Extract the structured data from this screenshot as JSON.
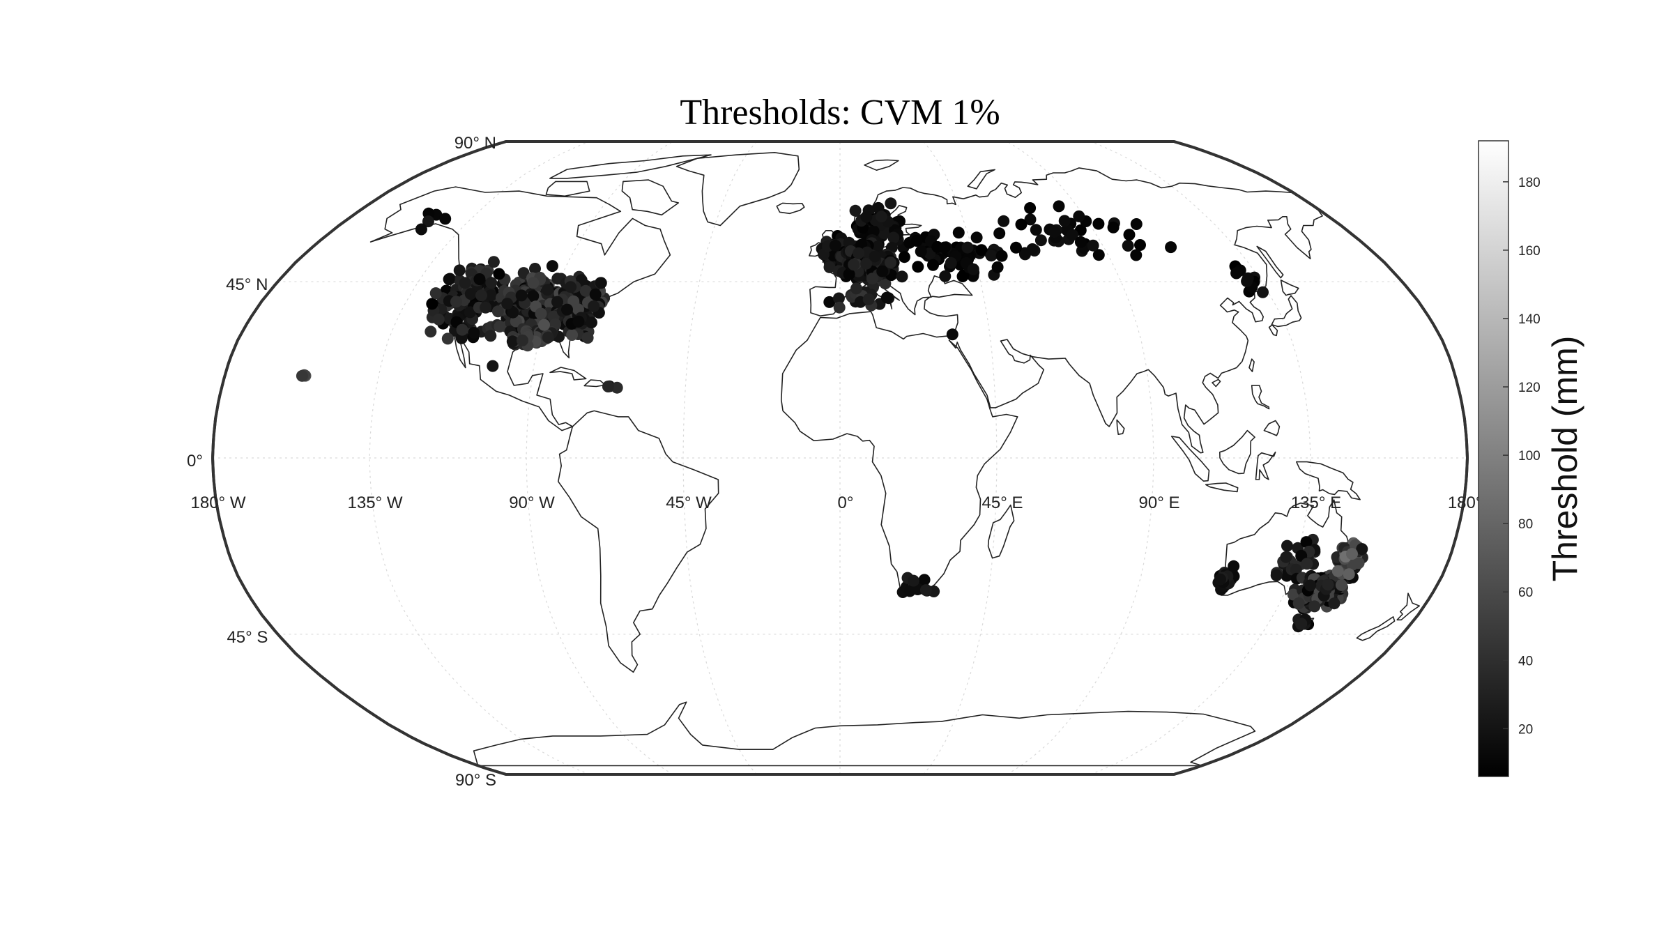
{
  "title": "Thresholds: CVM 1%",
  "lat_labels": [
    {
      "lat": 90,
      "text": "90° N"
    },
    {
      "lat": 45,
      "text": "45° N"
    },
    {
      "lat": 0,
      "text": "0°"
    },
    {
      "lat": -45,
      "text": "45° S"
    },
    {
      "lat": -90,
      "text": "90° S"
    }
  ],
  "lon_labels": [
    {
      "lon": -180,
      "text": "180° W"
    },
    {
      "lon": -135,
      "text": "135° W"
    },
    {
      "lon": -90,
      "text": "90° W"
    },
    {
      "lon": -45,
      "text": "45° W"
    },
    {
      "lon": 0,
      "text": "0°"
    },
    {
      "lon": 45,
      "text": "45° E"
    },
    {
      "lon": 90,
      "text": "90° E"
    },
    {
      "lon": 135,
      "text": "135° E"
    },
    {
      "lon": 180,
      "text": "180° E"
    }
  ],
  "colorbar": {
    "label": "Threshold (mm)",
    "range": [
      6,
      192
    ],
    "ticks": [
      20,
      40,
      60,
      80,
      100,
      120,
      140,
      160,
      180
    ],
    "colormap": [
      "#000000",
      "#ffffff"
    ]
  },
  "chart_data": {
    "type": "scatter",
    "projection": "Robinson",
    "marker_color": "#111111",
    "clusters": [
      {
        "name": "Alaska",
        "lon": -150,
        "lat": 61,
        "spread": [
          5,
          2
        ],
        "n": 5,
        "val": [
          8,
          25
        ]
      },
      {
        "name": "Hawaii",
        "lon": -157,
        "lat": 21,
        "spread": [
          1,
          0.5
        ],
        "n": 3,
        "val": [
          30,
          70
        ]
      },
      {
        "name": "West US",
        "lon": -116,
        "lat": 40,
        "spread": [
          7,
          7
        ],
        "n": 140,
        "val": [
          6,
          45
        ]
      },
      {
        "name": "Central US",
        "lon": -97,
        "lat": 40,
        "spread": [
          8,
          6
        ],
        "n": 200,
        "val": [
          10,
          60
        ]
      },
      {
        "name": "East US",
        "lon": -82,
        "lat": 38,
        "spread": [
          6,
          6
        ],
        "n": 160,
        "val": [
          10,
          55
        ]
      },
      {
        "name": "South US",
        "lon": -92,
        "lat": 31,
        "spread": [
          6,
          2
        ],
        "n": 50,
        "val": [
          20,
          65
        ]
      },
      {
        "name": "Mexico",
        "lon": -103,
        "lat": 23,
        "spread": [
          1,
          1
        ],
        "n": 1,
        "val": [
          20,
          40
        ]
      },
      {
        "name": "Puerto Rico",
        "lon": -66,
        "lat": 18,
        "spread": [
          1,
          0.4
        ],
        "n": 3,
        "val": [
          10,
          40
        ]
      },
      {
        "name": "British Isles",
        "lon": -3,
        "lat": 53,
        "spread": [
          3,
          3
        ],
        "n": 25,
        "val": [
          6,
          30
        ]
      },
      {
        "name": "Scandinavia",
        "lon": 14,
        "lat": 60,
        "spread": [
          7,
          4
        ],
        "n": 60,
        "val": [
          6,
          25
        ]
      },
      {
        "name": "Central Europe",
        "lon": 9,
        "lat": 50,
        "spread": [
          7,
          4
        ],
        "n": 160,
        "val": [
          8,
          40
        ]
      },
      {
        "name": "Iberia/Italy",
        "lon": 5,
        "lat": 41,
        "spread": [
          7,
          2
        ],
        "n": 20,
        "val": [
          10,
          45
        ]
      },
      {
        "name": "Eastern Europe",
        "lon": 36,
        "lat": 52,
        "spread": [
          12,
          5
        ],
        "n": 60,
        "val": [
          6,
          20
        ]
      },
      {
        "name": "Siberia",
        "lon": 80,
        "lat": 57,
        "spread": [
          25,
          6
        ],
        "n": 45,
        "val": [
          6,
          18
        ]
      },
      {
        "name": "Far East",
        "lon": 132,
        "lat": 47,
        "spread": [
          3,
          4
        ],
        "n": 10,
        "val": [
          6,
          20
        ]
      },
      {
        "name": "Israel",
        "lon": 34,
        "lat": 32,
        "spread": [
          0.5,
          0.5
        ],
        "n": 1,
        "val": [
          10,
          20
        ]
      },
      {
        "name": "South Africa",
        "lon": 24,
        "lat": -33,
        "spread": [
          4,
          1.5
        ],
        "n": 20,
        "val": [
          8,
          30
        ]
      },
      {
        "name": "West Australia",
        "lon": 116,
        "lat": -30,
        "spread": [
          2,
          3
        ],
        "n": 25,
        "val": [
          8,
          30
        ]
      },
      {
        "name": "Interior Australia",
        "lon": 135,
        "lat": -26,
        "spread": [
          6,
          5
        ],
        "n": 30,
        "val": [
          8,
          40
        ]
      },
      {
        "name": "SE Australia",
        "lon": 146,
        "lat": -34,
        "spread": [
          5,
          3
        ],
        "n": 220,
        "val": [
          8,
          60
        ]
      },
      {
        "name": "Queensland",
        "lon": 150,
        "lat": -25,
        "spread": [
          3,
          4
        ],
        "n": 60,
        "val": [
          20,
          90
        ]
      },
      {
        "name": "Tasmania",
        "lon": 146,
        "lat": -42,
        "spread": [
          1.5,
          0.8
        ],
        "n": 8,
        "val": [
          8,
          30
        ]
      }
    ]
  }
}
